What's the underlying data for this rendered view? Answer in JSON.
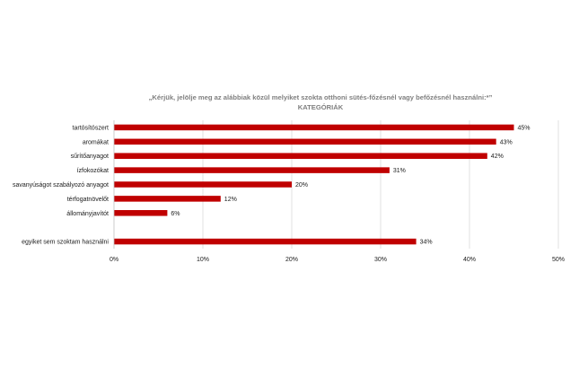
{
  "chart_data": {
    "type": "bar",
    "orientation": "horizontal",
    "title": "„Kérjük, jelölje meg az alábbiak közül melyiket szokta otthoni sütés-főzésnél vagy befőzésnél használni:*”",
    "subtitle": "KATEGÓRIÁK",
    "categories": [
      "tartósítószert",
      "aromákat",
      "sűrítőanyagot",
      "ízfokozókat",
      "savanyúságot szabályozó anyagot",
      "térfogatnövelőt",
      "állományjavítót",
      "",
      "egyiket sem szoktam használni"
    ],
    "values": [
      45,
      43,
      42,
      31,
      20,
      12,
      6,
      null,
      34
    ],
    "value_labels": [
      "45%",
      "43%",
      "42%",
      "31%",
      "20%",
      "12%",
      "6%",
      "",
      "34%"
    ],
    "xlim": [
      0,
      50
    ],
    "x_ticks": [
      0,
      10,
      20,
      30,
      40,
      50
    ],
    "x_tick_labels": [
      "0%",
      "10%",
      "20%",
      "30%",
      "40%",
      "50%"
    ],
    "bar_color": "#c00000",
    "grid": true,
    "legend": false
  }
}
